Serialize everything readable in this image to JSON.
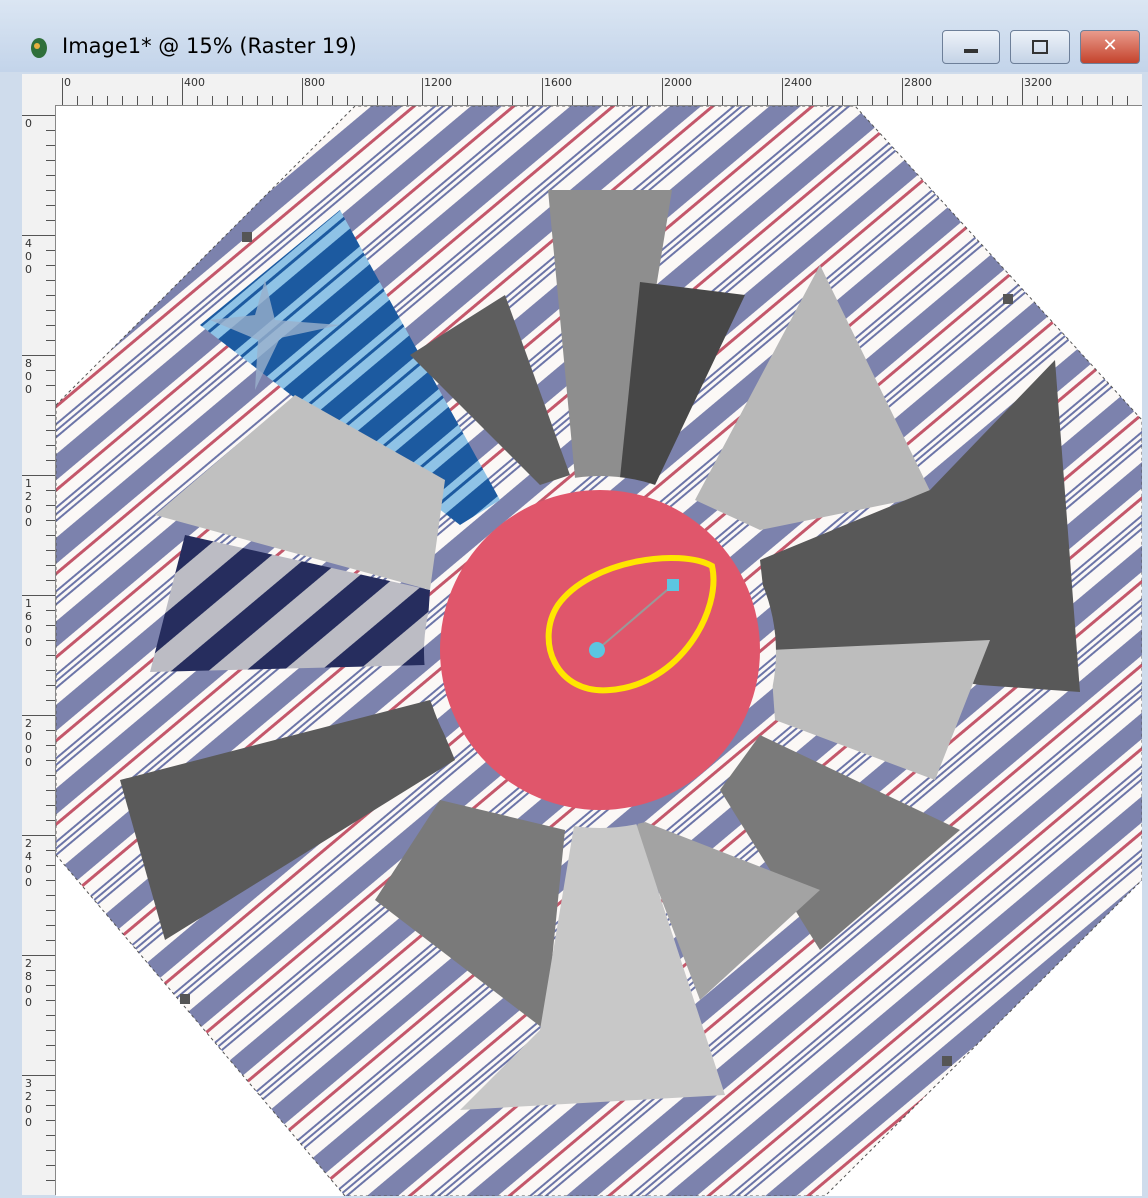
{
  "window": {
    "title": "Image1* @ 15% (Raster 19)"
  },
  "rulers": {
    "top": [
      0,
      400,
      800,
      1200,
      1600,
      2000,
      2400,
      2800,
      3200
    ],
    "left": [
      0,
      400,
      800,
      1200,
      1600,
      2000,
      2400,
      2800,
      3200
    ]
  }
}
